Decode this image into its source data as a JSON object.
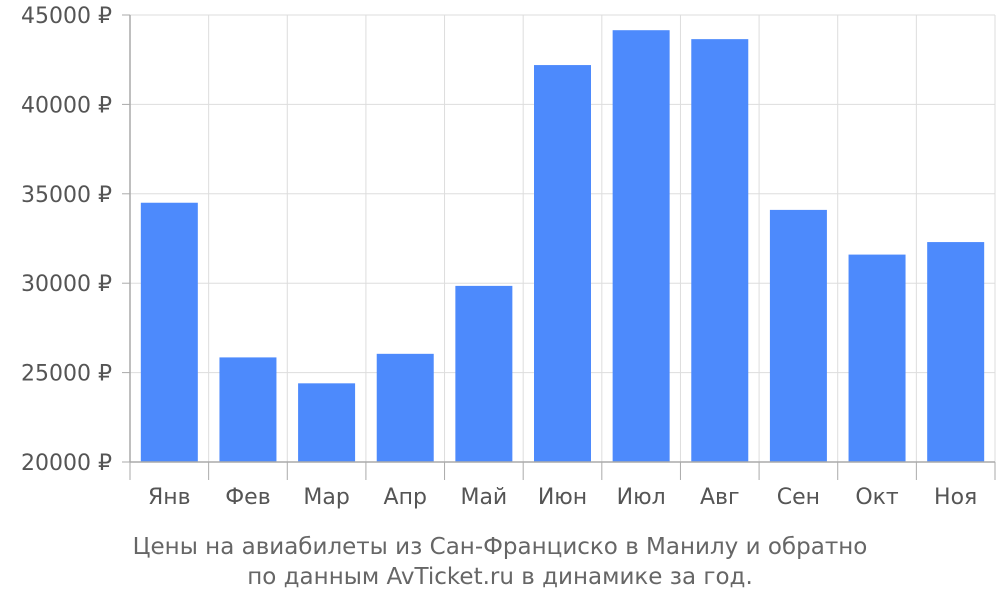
{
  "chart_data": {
    "type": "bar",
    "categories": [
      "Янв",
      "Фев",
      "Мар",
      "Апр",
      "Май",
      "Июн",
      "Июл",
      "Авг",
      "Сен",
      "Окт",
      "Ноя"
    ],
    "values": [
      34500,
      25850,
      24400,
      26050,
      29850,
      42200,
      44150,
      43650,
      34100,
      31600,
      32300
    ],
    "ylim": [
      20000,
      45000
    ],
    "yticks": [
      20000,
      25000,
      30000,
      35000,
      40000,
      45000
    ],
    "ytick_labels": [
      "20000 ₽",
      "25000 ₽",
      "30000 ₽",
      "35000 ₽",
      "40000 ₽",
      "45000 ₽"
    ],
    "grid": true,
    "bar_color": "#4d8afc",
    "caption_line1": "Цены на авиабилеты из Сан-Франциско в Манилу и обратно",
    "caption_line2": "по данным AvTicket.ru в динамике за год."
  }
}
